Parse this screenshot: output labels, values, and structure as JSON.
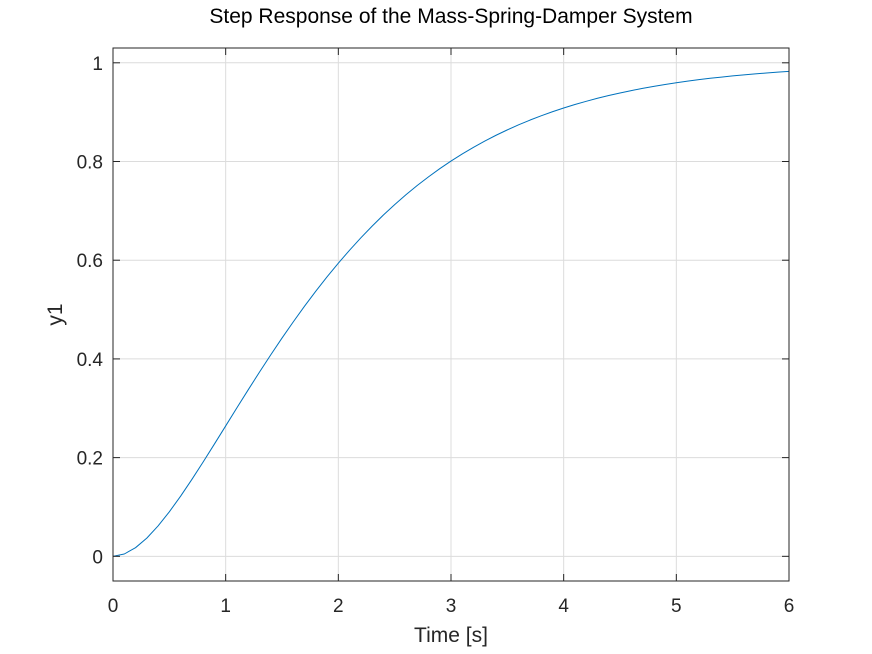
{
  "chart_data": {
    "type": "line",
    "title": "Step Response of the Mass-Spring-Damper System",
    "xlabel": "Time [s]",
    "ylabel": "y1",
    "xlim": [
      0,
      6
    ],
    "ylim": [
      -0.05,
      1.03
    ],
    "xticks": [
      0,
      1,
      2,
      3,
      4,
      5,
      6
    ],
    "xtick_labels": [
      "0",
      "1",
      "2",
      "3",
      "4",
      "5",
      "6"
    ],
    "yticks": [
      0,
      0.2,
      0.4,
      0.6,
      0.8,
      1
    ],
    "ytick_labels": [
      "0",
      "0.2",
      "0.4",
      "0.6",
      "0.8",
      "1"
    ],
    "grid": true,
    "series": [
      {
        "color": "#0072bd",
        "x": [
          0,
          0.1,
          0.2,
          0.3,
          0.4,
          0.5,
          0.6,
          0.7,
          0.8,
          0.9,
          1.0,
          1.1,
          1.2,
          1.3,
          1.4,
          1.5,
          1.6,
          1.7,
          1.8,
          1.9,
          2.0,
          2.1,
          2.2,
          2.3,
          2.4,
          2.5,
          2.6,
          2.7,
          2.8,
          2.9,
          3.0,
          3.1,
          3.2,
          3.3,
          3.4,
          3.5,
          3.6,
          3.7,
          3.8,
          3.9,
          4.0,
          4.1,
          4.2,
          4.3,
          4.4,
          4.5,
          4.6,
          4.7,
          4.8,
          4.9,
          5.0,
          5.1,
          5.2,
          5.3,
          5.4,
          5.5,
          5.6,
          5.7,
          5.8,
          5.9,
          6.0
        ],
        "y": [
          0,
          0.0047,
          0.0175,
          0.0369,
          0.0616,
          0.0902,
          0.1219,
          0.1558,
          0.1912,
          0.2275,
          0.2642,
          0.301,
          0.3374,
          0.3732,
          0.4082,
          0.4422,
          0.4751,
          0.5068,
          0.5372,
          0.5663,
          0.594,
          0.6204,
          0.6454,
          0.6691,
          0.6916,
          0.7127,
          0.7326,
          0.7513,
          0.7689,
          0.7854,
          0.8009,
          0.8153,
          0.8288,
          0.8414,
          0.8532,
          0.8641,
          0.8743,
          0.8838,
          0.8926,
          0.9008,
          0.9084,
          0.9155,
          0.922,
          0.9281,
          0.9337,
          0.9389,
          0.9437,
          0.9482,
          0.9523,
          0.9561,
          0.9596,
          0.9628,
          0.9658,
          0.9686,
          0.9711,
          0.9734,
          0.9756,
          0.9776,
          0.9794,
          0.9811,
          0.9826
        ]
      }
    ]
  }
}
